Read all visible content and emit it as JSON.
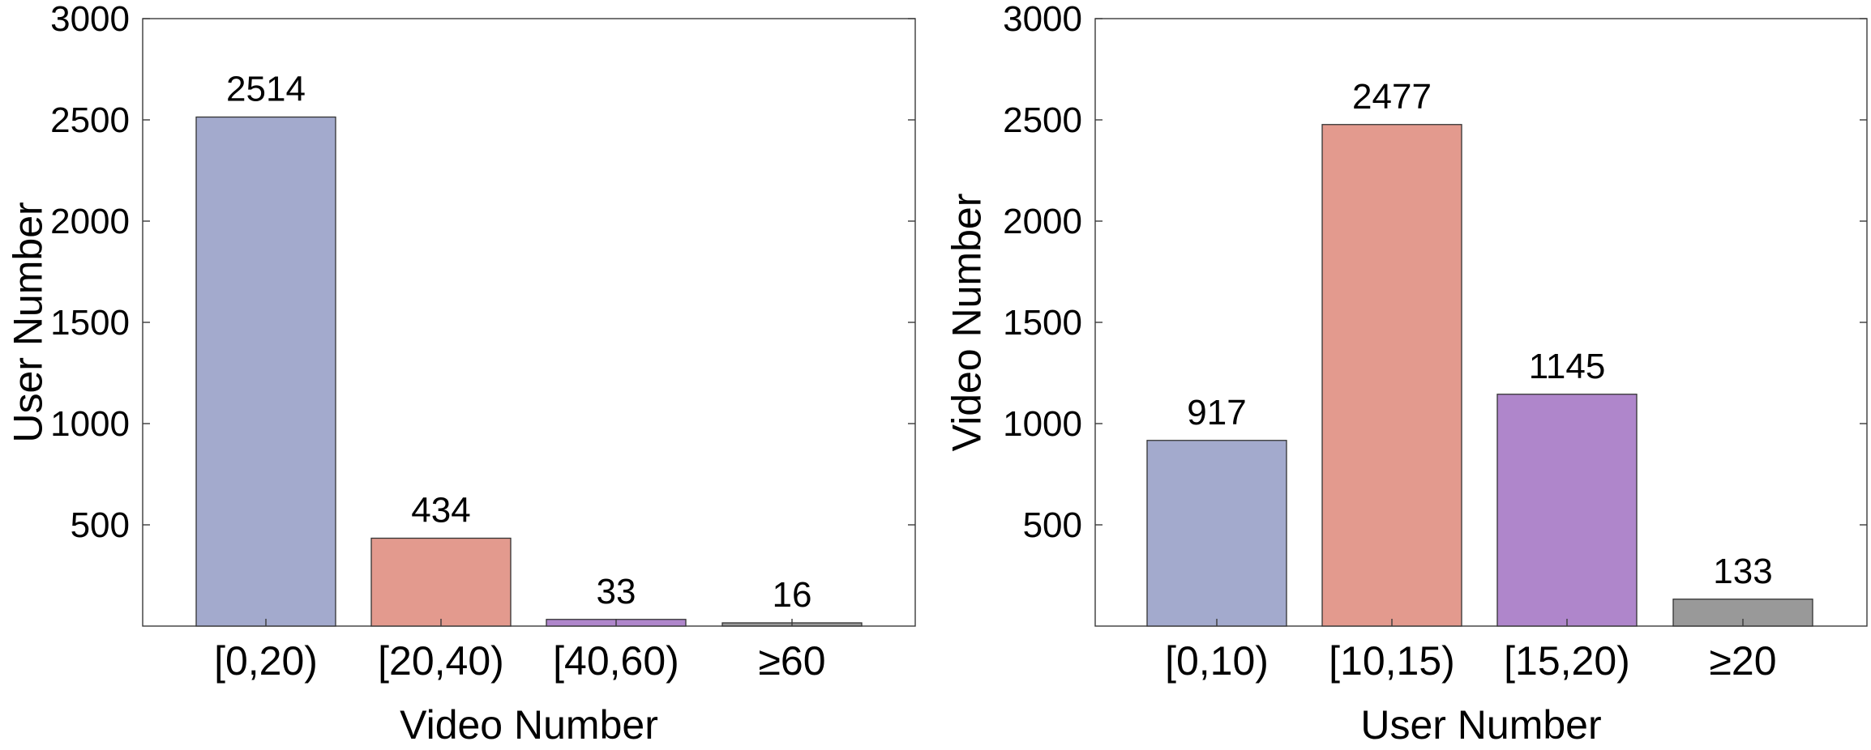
{
  "chart_data": [
    {
      "type": "bar",
      "categories": [
        "[0,20)",
        "[20,40)",
        "[40,60)",
        "≥60"
      ],
      "values": [
        2514,
        434,
        33,
        16
      ],
      "data_labels": [
        "2514",
        "434",
        "33",
        "16"
      ],
      "colors": [
        "#a3aacd",
        "#e39a8e",
        "#af86cb",
        "#999999"
      ],
      "xlabel": "Video Number",
      "ylabel": "User Number",
      "ylim": [
        0,
        3000
      ],
      "yticks": [
        500,
        1000,
        1500,
        2000,
        2500,
        3000
      ],
      "ytick_labels": [
        "500",
        "1000",
        "1500",
        "2000",
        "2500",
        "3000"
      ],
      "grid": false
    },
    {
      "type": "bar",
      "categories": [
        "[0,10)",
        "[10,15)",
        "[15,20)",
        "≥20"
      ],
      "values": [
        917,
        2477,
        1145,
        133
      ],
      "data_labels": [
        "917",
        "2477",
        "1145",
        "133"
      ],
      "colors": [
        "#a3aacd",
        "#e39a8e",
        "#af86cb",
        "#999999"
      ],
      "xlabel": "User Number",
      "ylabel": "Video Number",
      "ylim": [
        0,
        3000
      ],
      "yticks": [
        500,
        1000,
        1500,
        2000,
        2500,
        3000
      ],
      "ytick_labels": [
        "500",
        "1000",
        "1500",
        "2000",
        "2500",
        "3000"
      ],
      "grid": false
    }
  ]
}
